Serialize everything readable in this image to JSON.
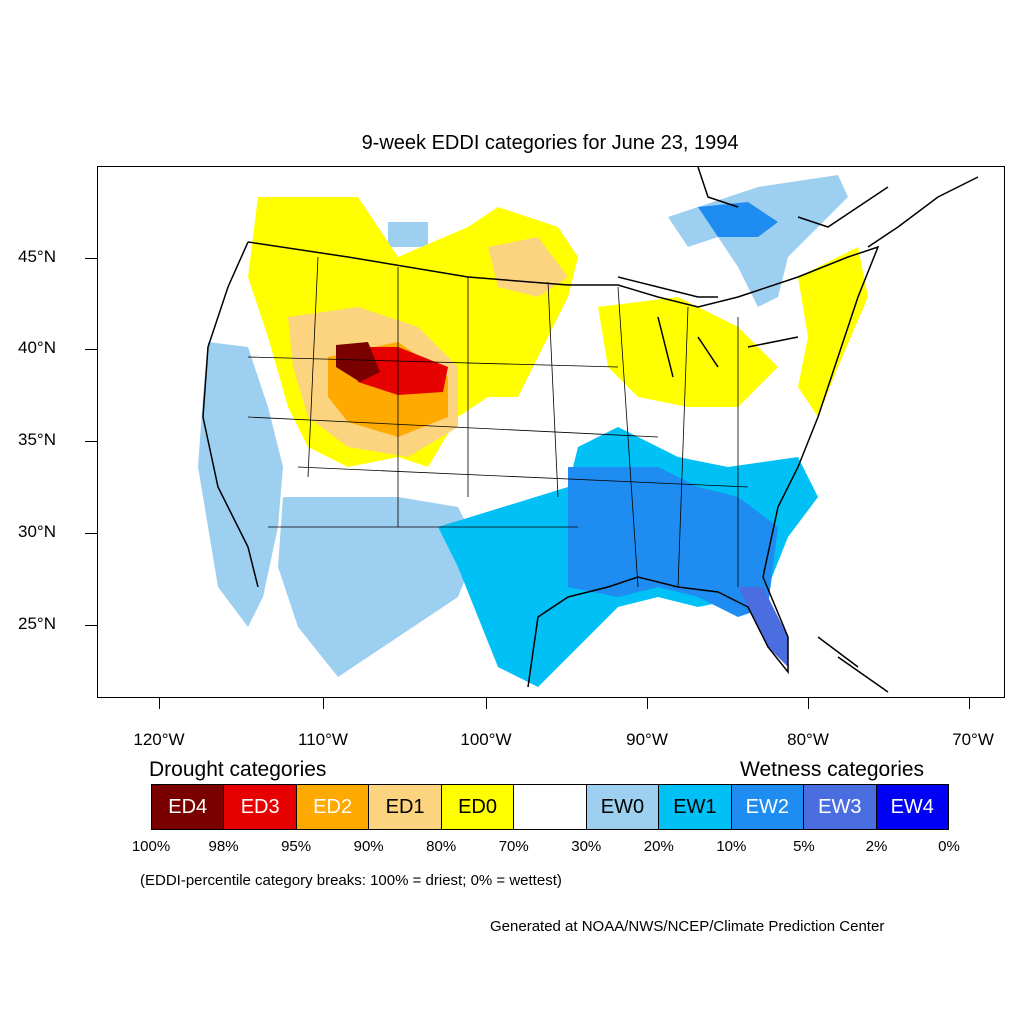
{
  "title": "9-week EDDI categories for June 23, 1994",
  "lat_labels": [
    "45°N",
    "40°N",
    "35°N",
    "30°N",
    "25°N"
  ],
  "lon_labels": [
    "120°W",
    "110°W",
    "100°W",
    "90°W",
    "80°W",
    "70°W"
  ],
  "drought_heading": "Drought categories",
  "wetness_heading": "Wetness categories",
  "legend": [
    {
      "label": "ED4",
      "color": "#7a0000",
      "text_color": "#ffffff"
    },
    {
      "label": "ED3",
      "color": "#e60000",
      "text_color": "#ffffff"
    },
    {
      "label": "ED2",
      "color": "#ffaa00",
      "text_color": "#ffffff"
    },
    {
      "label": "ED1",
      "color": "#fcd37f",
      "text_color": "#000000"
    },
    {
      "label": "ED0",
      "color": "#ffff00",
      "text_color": "#000000"
    },
    {
      "label": "",
      "color": "#ffffff",
      "text_color": "#000000"
    },
    {
      "label": "EW0",
      "color": "#9dcff0",
      "text_color": "#000000"
    },
    {
      "label": "EW1",
      "color": "#00c0f5",
      "text_color": "#000000"
    },
    {
      "label": "EW2",
      "color": "#1e8cf0",
      "text_color": "#ffffff"
    },
    {
      "label": "EW3",
      "color": "#4a6ee0",
      "text_color": "#ffffff"
    },
    {
      "label": "EW4",
      "color": "#0000f5",
      "text_color": "#ffffff"
    }
  ],
  "breaks": [
    "100%",
    "98%",
    "95%",
    "90%",
    "80%",
    "70%",
    "30%",
    "20%",
    "10%",
    "5%",
    "2%",
    "0%"
  ],
  "note": "(EDDI-percentile category breaks: 100% = driest; 0% = wettest)",
  "credit": "Generated at NOAA/NWS/NCEP/Climate Prediction Center"
}
